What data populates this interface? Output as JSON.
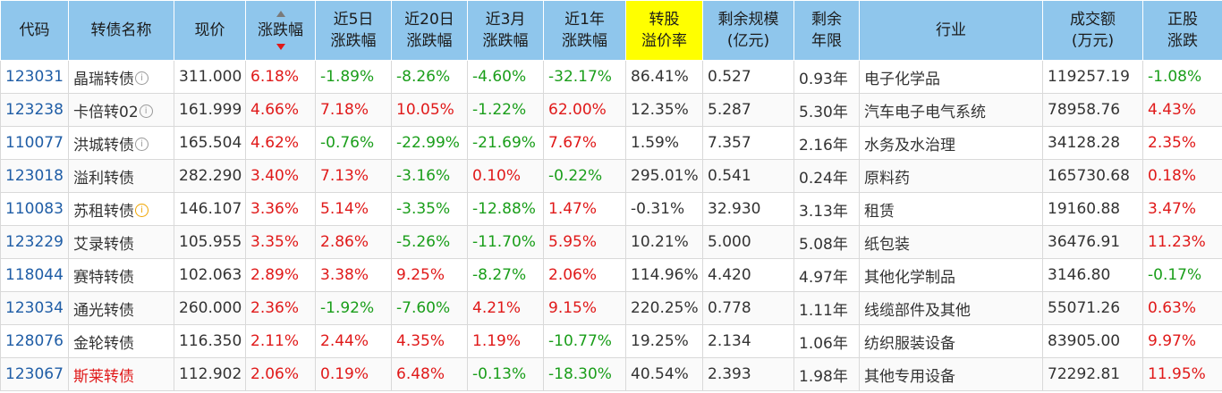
{
  "headers": [
    {
      "key": "code",
      "lines": [
        "代码"
      ]
    },
    {
      "key": "name",
      "lines": [
        "转债名称"
      ]
    },
    {
      "key": "price",
      "lines": [
        "现价"
      ]
    },
    {
      "key": "chg",
      "lines": [
        "涨跌幅"
      ]
    },
    {
      "key": "chg5d",
      "lines": [
        "近5日",
        "涨跌幅"
      ]
    },
    {
      "key": "chg20d",
      "lines": [
        "近20日",
        "涨跌幅"
      ]
    },
    {
      "key": "chg3m",
      "lines": [
        "近3月",
        "涨跌幅"
      ]
    },
    {
      "key": "chg1y",
      "lines": [
        "近1年",
        "涨跌幅"
      ]
    },
    {
      "key": "premium",
      "lines": [
        "转股",
        "溢价率"
      ]
    },
    {
      "key": "remain_size",
      "lines": [
        "剩余规模",
        "(亿元)"
      ]
    },
    {
      "key": "remain_years",
      "lines": [
        "剩余",
        "年限"
      ]
    },
    {
      "key": "industry",
      "lines": [
        "行业"
      ]
    },
    {
      "key": "volume",
      "lines": [
        "成交额",
        "(万元)"
      ]
    },
    {
      "key": "stock_chg",
      "lines": [
        "正股",
        "涨跌"
      ]
    }
  ],
  "rows": [
    {
      "code": "123031",
      "name": "晶瑞转债",
      "icon": "info-icon",
      "price": "311.000",
      "chg": "6.18%",
      "chg5d": "-1.89%",
      "chg20d": "-8.26%",
      "chg3m": "-4.60%",
      "chg1y": "-32.17%",
      "premium": "86.41%",
      "remain_size": "0.527",
      "remain_years": "0.93年",
      "industry": "电子化学品",
      "volume": "119257.19",
      "stock_chg": "-1.08%"
    },
    {
      "code": "123238",
      "name": "卡倍转02",
      "icon": "info-icon",
      "price": "161.999",
      "chg": "4.66%",
      "chg5d": "7.18%",
      "chg20d": "10.05%",
      "chg3m": "-1.22%",
      "chg1y": "62.00%",
      "premium": "12.35%",
      "remain_size": "5.287",
      "remain_years": "5.30年",
      "industry": "汽车电子电气系统",
      "volume": "78958.76",
      "stock_chg": "4.43%"
    },
    {
      "code": "110077",
      "name": "洪城转债",
      "icon": "info-icon",
      "price": "165.504",
      "chg": "4.62%",
      "chg5d": "-0.76%",
      "chg20d": "-22.99%",
      "chg3m": "-21.69%",
      "chg1y": "7.67%",
      "premium": "1.59%",
      "remain_size": "7.357",
      "remain_years": "2.16年",
      "industry": "水务及水治理",
      "volume": "34128.28",
      "stock_chg": "2.35%"
    },
    {
      "code": "123018",
      "name": "溢利转债",
      "icon": "",
      "price": "282.290",
      "chg": "3.40%",
      "chg5d": "7.13%",
      "chg20d": "-3.16%",
      "chg3m": "0.10%",
      "chg1y": "-0.22%",
      "premium": "295.01%",
      "remain_size": "0.541",
      "remain_years": "0.24年",
      "industry": "原料药",
      "volume": "165730.68",
      "stock_chg": "0.18%"
    },
    {
      "code": "110083",
      "name": "苏租转债",
      "icon": "warning-icon",
      "price": "146.107",
      "chg": "3.36%",
      "chg5d": "5.14%",
      "chg20d": "-3.35%",
      "chg3m": "-12.88%",
      "chg1y": "1.47%",
      "premium": "-0.31%",
      "remain_size": "32.930",
      "remain_years": "3.13年",
      "industry": "租赁",
      "volume": "19160.88",
      "stock_chg": "3.47%"
    },
    {
      "code": "123229",
      "name": "艾录转债",
      "icon": "",
      "price": "105.955",
      "chg": "3.35%",
      "chg5d": "2.86%",
      "chg20d": "-5.26%",
      "chg3m": "-11.70%",
      "chg1y": "5.95%",
      "premium": "10.21%",
      "remain_size": "5.000",
      "remain_years": "5.08年",
      "industry": "纸包装",
      "volume": "36476.91",
      "stock_chg": "11.23%"
    },
    {
      "code": "118044",
      "name": "赛特转债",
      "icon": "",
      "price": "102.063",
      "chg": "2.89%",
      "chg5d": "3.38%",
      "chg20d": "9.25%",
      "chg3m": "-8.27%",
      "chg1y": "2.06%",
      "premium": "114.96%",
      "remain_size": "4.420",
      "remain_years": "4.97年",
      "industry": "其他化学制品",
      "volume": "3146.80",
      "stock_chg": "-0.17%"
    },
    {
      "code": "123034",
      "name": "通光转债",
      "icon": "",
      "price": "260.000",
      "chg": "2.36%",
      "chg5d": "-1.92%",
      "chg20d": "-7.60%",
      "chg3m": "4.21%",
      "chg1y": "9.15%",
      "premium": "220.25%",
      "remain_size": "0.778",
      "remain_years": "1.11年",
      "industry": "线缆部件及其他",
      "volume": "55071.26",
      "stock_chg": "0.63%"
    },
    {
      "code": "128076",
      "name": "金轮转债",
      "icon": "",
      "price": "116.350",
      "chg": "2.11%",
      "chg5d": "2.44%",
      "chg20d": "4.35%",
      "chg3m": "1.19%",
      "chg1y": "-10.77%",
      "premium": "19.25%",
      "remain_size": "2.134",
      "remain_years": "1.06年",
      "industry": "纺织服装设备",
      "volume": "83905.00",
      "stock_chg": "9.97%"
    },
    {
      "code": "123067",
      "name": "斯莱转债",
      "icon": "",
      "name_red": true,
      "price": "112.902",
      "chg": "2.06%",
      "chg5d": "0.19%",
      "chg20d": "6.48%",
      "chg3m": "-0.13%",
      "chg1y": "-18.30%",
      "premium": "40.54%",
      "remain_size": "2.393",
      "remain_years": "1.98年",
      "industry": "其他专用设备",
      "volume": "72292.81",
      "stock_chg": "11.95%"
    }
  ],
  "colors": {
    "header_bg": "#8fc6ec",
    "highlight": "#ffff00",
    "up": "#e01919",
    "down": "#1a9e1a",
    "code": "#1f5da6"
  }
}
